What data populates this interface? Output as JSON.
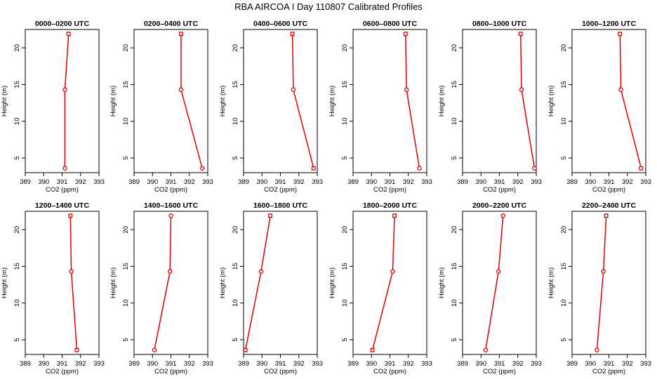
{
  "page": {
    "title": "RBA AIRCOA I  Day 110807  Calibrated Profiles"
  },
  "colors": {
    "series": "#e00000",
    "axis": "#000000",
    "background": "#ffffff"
  },
  "chart_data": [
    {
      "type": "line",
      "title": "0000–0200 UTC",
      "xlabel": "CO2 (ppm)",
      "ylabel": "Height (m)",
      "xlim": [
        389,
        393
      ],
      "ylim": [
        3,
        22.5
      ],
      "xticks": [
        389,
        390,
        391,
        392,
        393
      ],
      "yticks": [
        5,
        10,
        15,
        20
      ],
      "grid": false,
      "markers": [
        "square",
        "circle",
        "circle"
      ],
      "x": [
        391.35,
        391.15,
        391.15
      ],
      "y": [
        21.9,
        14.3,
        3.6
      ]
    },
    {
      "type": "line",
      "title": "0200–0400 UTC",
      "xlabel": "CO2 (ppm)",
      "ylabel": "Height (m)",
      "xlim": [
        389,
        393
      ],
      "ylim": [
        3,
        22.5
      ],
      "xticks": [
        389,
        390,
        391,
        392,
        393
      ],
      "yticks": [
        5,
        10,
        15,
        20
      ],
      "grid": false,
      "markers": [
        "square",
        "circle",
        "circle"
      ],
      "x": [
        391.55,
        391.55,
        392.7
      ],
      "y": [
        21.9,
        14.3,
        3.6
      ]
    },
    {
      "type": "line",
      "title": "0400–0600 UTC",
      "xlabel": "CO2 (ppm)",
      "ylabel": "Height (m)",
      "xlim": [
        389,
        393
      ],
      "ylim": [
        3,
        22.5
      ],
      "xticks": [
        389,
        390,
        391,
        392,
        393
      ],
      "yticks": [
        5,
        10,
        15,
        20
      ],
      "grid": false,
      "markers": [
        "square",
        "circle",
        "square"
      ],
      "x": [
        391.65,
        391.7,
        392.8
      ],
      "y": [
        21.9,
        14.3,
        3.6
      ]
    },
    {
      "type": "line",
      "title": "0600–0800 UTC",
      "xlabel": "CO2 (ppm)",
      "ylabel": "Height (m)",
      "xlim": [
        389,
        393
      ],
      "ylim": [
        3,
        22.5
      ],
      "xticks": [
        389,
        390,
        391,
        392,
        393
      ],
      "yticks": [
        5,
        10,
        15,
        20
      ],
      "grid": false,
      "markers": [
        "square",
        "circle",
        "circle"
      ],
      "x": [
        391.85,
        391.9,
        392.6
      ],
      "y": [
        21.9,
        14.3,
        3.6
      ]
    },
    {
      "type": "line",
      "title": "0800–1000 UTC",
      "xlabel": "CO2 (ppm)",
      "ylabel": "Height (m)",
      "xlim": [
        389,
        393
      ],
      "ylim": [
        3,
        22.5
      ],
      "xticks": [
        389,
        390,
        391,
        392,
        393
      ],
      "yticks": [
        5,
        10,
        15,
        20
      ],
      "grid": false,
      "markers": [
        "square",
        "circle",
        "circle"
      ],
      "x": [
        392.15,
        392.2,
        392.9
      ],
      "y": [
        21.9,
        14.3,
        3.6
      ]
    },
    {
      "type": "line",
      "title": "1000–1200 UTC",
      "xlabel": "CO2 (ppm)",
      "ylabel": "Height (m)",
      "xlim": [
        389,
        393
      ],
      "ylim": [
        3,
        22.5
      ],
      "xticks": [
        389,
        390,
        391,
        392,
        393
      ],
      "yticks": [
        5,
        10,
        15,
        20
      ],
      "grid": false,
      "markers": [
        "square",
        "circle",
        "square"
      ],
      "x": [
        391.6,
        391.65,
        392.75
      ],
      "y": [
        21.9,
        14.3,
        3.6
      ]
    },
    {
      "type": "line",
      "title": "1200–1400 UTC",
      "xlabel": "CO2 (ppm)",
      "ylabel": "Height (m)",
      "xlim": [
        389,
        393
      ],
      "ylim": [
        3,
        22.5
      ],
      "xticks": [
        389,
        390,
        391,
        392,
        393
      ],
      "yticks": [
        5,
        10,
        15,
        20
      ],
      "grid": false,
      "markers": [
        "square",
        "circle",
        "square"
      ],
      "x": [
        391.45,
        391.5,
        391.8
      ],
      "y": [
        21.9,
        14.3,
        3.6
      ]
    },
    {
      "type": "line",
      "title": "1400–1600 UTC",
      "xlabel": "CO2 (ppm)",
      "ylabel": "Height (m)",
      "xlim": [
        389,
        393
      ],
      "ylim": [
        3,
        22.5
      ],
      "xticks": [
        389,
        390,
        391,
        392,
        393
      ],
      "yticks": [
        5,
        10,
        15,
        20
      ],
      "grid": false,
      "markers": [
        "circle",
        "circle",
        "circle"
      ],
      "x": [
        391.0,
        390.95,
        390.1
      ],
      "y": [
        21.9,
        14.3,
        3.6
      ]
    },
    {
      "type": "line",
      "title": "1600–1800 UTC",
      "xlabel": "CO2 (ppm)",
      "ylabel": "Height (m)",
      "xlim": [
        389,
        393
      ],
      "ylim": [
        3,
        22.5
      ],
      "xticks": [
        389,
        390,
        391,
        392,
        393
      ],
      "yticks": [
        5,
        10,
        15,
        20
      ],
      "grid": false,
      "markers": [
        "square",
        "circle",
        "square"
      ],
      "x": [
        390.45,
        389.95,
        389.1
      ],
      "y": [
        21.9,
        14.3,
        3.6
      ]
    },
    {
      "type": "line",
      "title": "1800–2000 UTC",
      "xlabel": "CO2 (ppm)",
      "ylabel": "Height (m)",
      "xlim": [
        389,
        393
      ],
      "ylim": [
        3,
        22.5
      ],
      "xticks": [
        389,
        390,
        391,
        392,
        393
      ],
      "yticks": [
        5,
        10,
        15,
        20
      ],
      "grid": false,
      "markers": [
        "square",
        "circle",
        "square"
      ],
      "x": [
        391.25,
        391.15,
        390.05
      ],
      "y": [
        21.9,
        14.3,
        3.6
      ]
    },
    {
      "type": "line",
      "title": "2000–2200 UTC",
      "xlabel": "CO2 (ppm)",
      "ylabel": "Height (m)",
      "xlim": [
        389,
        393
      ],
      "ylim": [
        3,
        22.5
      ],
      "xticks": [
        389,
        390,
        391,
        392,
        393
      ],
      "yticks": [
        5,
        10,
        15,
        20
      ],
      "grid": false,
      "markers": [
        "circle",
        "circle",
        "circle"
      ],
      "x": [
        391.2,
        390.95,
        390.25
      ],
      "y": [
        21.9,
        14.3,
        3.6
      ]
    },
    {
      "type": "line",
      "title": "2200–2400 UTC",
      "xlabel": "CO2 (ppm)",
      "ylabel": "Height (m)",
      "xlim": [
        389,
        393
      ],
      "ylim": [
        3,
        22.5
      ],
      "xticks": [
        389,
        390,
        391,
        392,
        393
      ],
      "yticks": [
        5,
        10,
        15,
        20
      ],
      "grid": false,
      "markers": [
        "square",
        "circle",
        "circle"
      ],
      "x": [
        390.85,
        390.7,
        390.35
      ],
      "y": [
        21.9,
        14.3,
        3.6
      ]
    }
  ]
}
